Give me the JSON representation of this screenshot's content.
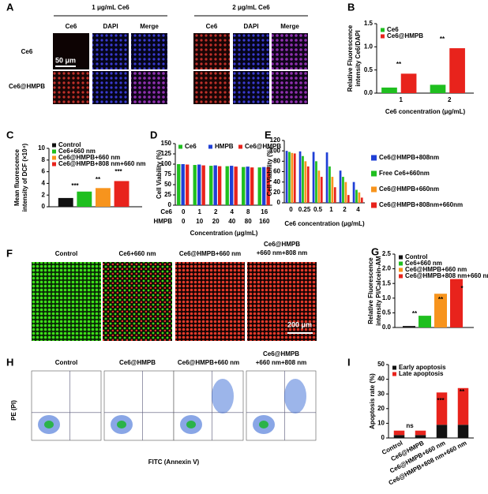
{
  "panel_labels": [
    "A",
    "B",
    "C",
    "D",
    "E",
    "F",
    "G",
    "H",
    "I"
  ],
  "panel_a": {
    "groups": [
      "1 μg/mL Ce6",
      "2 μg/mL Ce6"
    ],
    "channels": [
      "Ce6",
      "DAPI",
      "Merge",
      "Ce6",
      "DAPI",
      "Merge"
    ],
    "rows": [
      "Ce6",
      "Ce6@HMPB"
    ],
    "scale_bar": "50 μm"
  },
  "panel_f": {
    "columns": [
      "Control",
      "Ce6+660 nm",
      "Ce6@HMPB+660 nm",
      [
        "Ce6@HMPB",
        "+660 nm+808 nm"
      ]
    ],
    "scale_bar": "200 μm"
  },
  "panel_h": {
    "columns": [
      "Control",
      "Ce6@HMPB",
      "Ce6@HMPB+660 nm",
      [
        "Ce6@HMPB",
        "+660 nm+808 nm"
      ]
    ],
    "y_label": "PE (PI)",
    "x_label": "FITC (Annexin V)"
  },
  "chart_data": [
    {
      "type": "bar",
      "y_label": [
        "Relative Fluorescence",
        "intensity Ce6/DAPI"
      ],
      "x_label": "Ce6 concentration (μg/mL)",
      "categories": [
        "1",
        "2"
      ],
      "series": [
        {
          "name": "Ce6",
          "color": "#1fbf1f",
          "values": [
            0.12,
            0.18
          ]
        },
        {
          "name": "Ce6@HMPB",
          "color": "#e8231c",
          "values": [
            0.42,
            0.97
          ]
        }
      ],
      "ylim": [
        0,
        1.5
      ],
      "yticks": [
        {
          "value": 0,
          "label": "0.0"
        },
        0.5,
        {
          "value": 1,
          "label": "1.0"
        },
        1.5
      ],
      "annotations": [
        "**",
        "**"
      ]
    },
    {
      "type": "bar",
      "y_label": [
        "Mean fluorescence",
        "intensity of DCF (×10⁴)"
      ],
      "categories": [
        null
      ],
      "series": [
        {
          "name": "Control",
          "color": "#111111",
          "values": [
            1.5
          ]
        },
        {
          "name": "Ce6+660 nm",
          "color": "#1fbf1f",
          "values": [
            2.6
          ]
        },
        {
          "name": "Ce6@HMPB+660 nm",
          "color": "#f7941d",
          "values": [
            3.2
          ]
        },
        {
          "name": "Ce6@HMPB+808 nm+660 nm",
          "color": "#e8231c",
          "values": [
            4.4
          ]
        }
      ],
      "ylim": [
        0,
        10
      ],
      "yticks": [
        0,
        2,
        4,
        6,
        8,
        10
      ],
      "annotations": [
        "***",
        "**",
        "***"
      ]
    },
    {
      "type": "bar",
      "y_label": [
        "Cell Viability (%)"
      ],
      "x_label": "Concentration (μg/mL)",
      "category_rows": [
        {
          "label": "Ce6",
          "values": [
            "0",
            "1",
            "2",
            "4",
            "8",
            "16"
          ]
        },
        {
          "label": "HMPB",
          "values": [
            "0",
            "10",
            "20",
            "40",
            "80",
            "160"
          ]
        }
      ],
      "series": [
        {
          "name": "Ce6",
          "color": "#1fbf1f",
          "values": [
            100,
            98,
            96,
            95,
            93,
            92
          ]
        },
        {
          "name": "HMPB",
          "color": "#1f3fd6",
          "values": [
            100,
            99,
            97,
            96,
            94,
            93
          ]
        },
        {
          "name": "Ce6@HMPB",
          "color": "#e8231c",
          "values": [
            99,
            97,
            95,
            94,
            92,
            92
          ]
        }
      ],
      "ylim": [
        0,
        150
      ],
      "yticks": [
        0,
        25,
        50,
        75,
        100,
        125,
        150
      ]
    },
    {
      "type": "bar",
      "y_label": [
        "Cell Viability (%)"
      ],
      "x_label": "Ce6 concentration (μg/mL)",
      "categories": [
        "0",
        "0.25",
        "0.5",
        "1",
        "2",
        "4"
      ],
      "series": [
        {
          "name": "Ce6@HMPB+808nm",
          "color": "#1f3fd6",
          "values": [
            100,
            99,
            98,
            97,
            62,
            40
          ]
        },
        {
          "name": "Free Ce6+660nm",
          "color": "#1fbf1f",
          "values": [
            98,
            90,
            80,
            70,
            50,
            25
          ]
        },
        {
          "name": "Ce6@HMPB+660nm",
          "color": "#f7941d",
          "values": [
            96,
            80,
            62,
            50,
            40,
            20
          ]
        },
        {
          "name": "Ce6@HMPB+808nm+660nm",
          "color": "#e8231c",
          "values": [
            95,
            70,
            50,
            30,
            15,
            10
          ]
        }
      ],
      "ylim": [
        0,
        120
      ],
      "yticks": [
        0,
        20,
        40,
        60,
        80,
        100,
        120
      ]
    },
    {
      "type": "bar",
      "y_label": [
        "Relative Fluorescence",
        "intensity PI/Calcein-AM"
      ],
      "categories": [
        null
      ],
      "series": [
        {
          "name": "Control",
          "color": "#111111",
          "values": [
            0.05
          ]
        },
        {
          "name": "Ce6+660 nm",
          "color": "#1fbf1f",
          "values": [
            0.4
          ]
        },
        {
          "name": "Ce6@HMPB+660 nm",
          "color": "#f7941d",
          "values": [
            1.15
          ]
        },
        {
          "name": "Ce6@HMPB+808 nm+660 nm",
          "color": "#e8231c",
          "values": [
            1.65
          ]
        }
      ],
      "ylim": [
        0,
        2.5
      ],
      "yticks": [
        {
          "value": 0,
          "label": "0.0"
        },
        0.5,
        {
          "value": 1,
          "label": "1.0"
        },
        1.5,
        {
          "value": 2,
          "label": "2.0"
        },
        2.5
      ],
      "annotations": [
        "**",
        "**",
        "*"
      ]
    },
    {
      "type": "bar",
      "stacked": true,
      "y_label": [
        "Apoptosis rate (%)"
      ],
      "categories": [
        "Control",
        "Ce6@HMPB",
        "Ce6@HMPB+660 nm",
        "Ce6@HMPB+808 nm+660 nm"
      ],
      "series": [
        {
          "name": "Early apoptosis",
          "color": "#111111",
          "values": [
            2,
            2,
            9,
            9
          ]
        },
        {
          "name": "Late apoptosis",
          "color": "#e8231c",
          "values": [
            3,
            3,
            22,
            25
          ]
        }
      ],
      "ylim": [
        0,
        50
      ],
      "yticks": [
        0,
        10,
        20,
        30,
        40,
        50
      ],
      "annotations": [
        "ns",
        "***",
        "**"
      ]
    }
  ]
}
